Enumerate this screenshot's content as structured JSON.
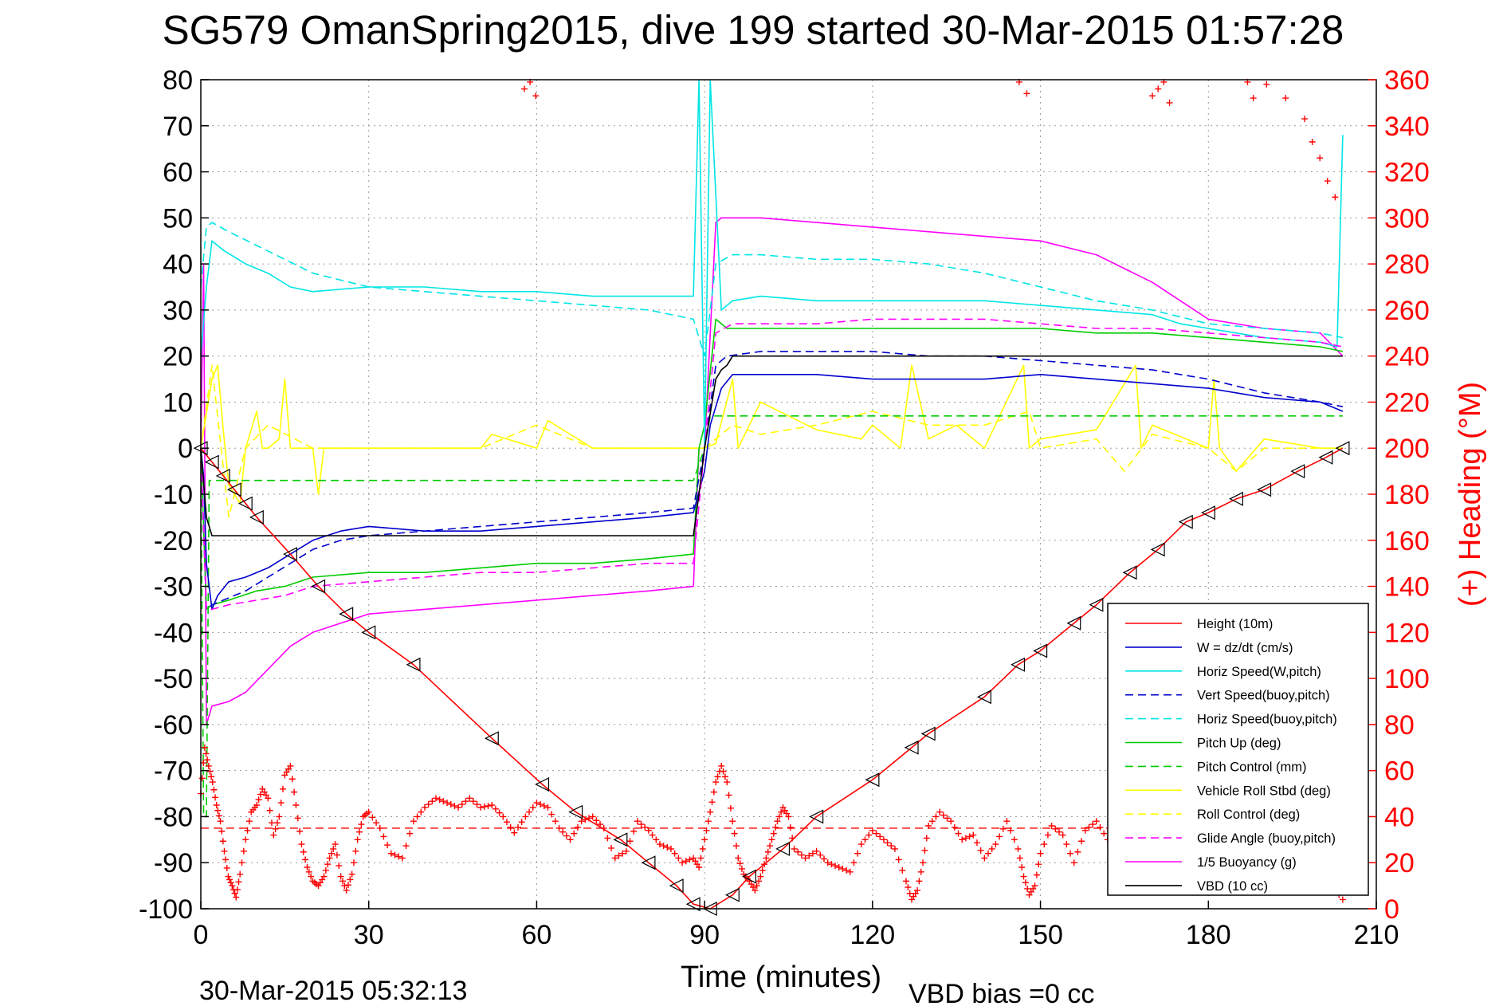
{
  "chart_data": {
    "type": "line",
    "title": "SG579 OmanSpring2015, dive 199 started 30-Mar-2015 01:57:28",
    "xlabel": "Time (minutes)",
    "ylabel": "",
    "ylabel_right": "(+) Heading (°M)",
    "xlim": [
      0,
      210
    ],
    "ylim": [
      -100,
      80
    ],
    "ylim_right": [
      0,
      360
    ],
    "x_ticks": [
      0,
      30,
      60,
      90,
      120,
      150,
      180,
      210
    ],
    "y_ticks": [
      -100,
      -90,
      -80,
      -70,
      -60,
      -50,
      -40,
      -30,
      -20,
      -10,
      0,
      10,
      20,
      30,
      40,
      50,
      60,
      70,
      80
    ],
    "y_ticks_right": [
      0,
      20,
      40,
      60,
      80,
      100,
      120,
      140,
      160,
      180,
      200,
      220,
      240,
      260,
      280,
      300,
      320,
      340,
      360
    ],
    "grid": true,
    "legend_position": "bottom-right",
    "footer_left": "30-Mar-2015 05:32:13",
    "footer_right": "VBD bias =0 cc",
    "colors": {
      "black": "#000000",
      "red": "#ff0000",
      "blue": "#0000cc",
      "cyan": "#00e5e5",
      "green": "#00cc00",
      "yellow": "#ffff00",
      "magenta": "#ff00ff"
    },
    "series": [
      {
        "name": "Height (10m)",
        "color": "#ff0000",
        "style": "solid",
        "markers": "triangles",
        "x": [
          0,
          2,
          4,
          6,
          8,
          10,
          16,
          21,
          26,
          30,
          38,
          52,
          61,
          67,
          75,
          80,
          85,
          88,
          91,
          95,
          98,
          104,
          110,
          120,
          127,
          130,
          140,
          146,
          150,
          156,
          160,
          166,
          171,
          176,
          180,
          185,
          190,
          196,
          201,
          204
        ],
        "y": [
          0,
          -3,
          -6,
          -9,
          -12,
          -15,
          -23,
          -30,
          -36,
          -40,
          -47,
          -63,
          -73,
          -79,
          -85,
          -90,
          -95,
          -99,
          -100,
          -97,
          -93,
          -87,
          -80,
          -72,
          -65,
          -62,
          -54,
          -47,
          -44,
          -38,
          -34,
          -27,
          -22,
          -16,
          -14,
          -11,
          -9,
          -5,
          -2,
          0
        ]
      },
      {
        "name": "W = dz/dt (cm/s)",
        "color": "#0000cc",
        "style": "solid",
        "x": [
          0,
          0.5,
          1,
          2,
          3,
          5,
          8,
          12,
          16,
          20,
          25,
          30,
          40,
          50,
          60,
          70,
          80,
          88,
          90,
          91,
          93,
          95,
          100,
          110,
          120,
          130,
          140,
          150,
          160,
          170,
          180,
          190,
          200,
          204
        ],
        "y": [
          0,
          -6,
          -25,
          -35,
          -32,
          -29,
          -28,
          -26,
          -23,
          -20,
          -18,
          -17,
          -18,
          -18,
          -17,
          -16,
          -15,
          -14,
          -5,
          5,
          13,
          16,
          16,
          16,
          15,
          15,
          15,
          16,
          15,
          14,
          13,
          11,
          10,
          8
        ]
      },
      {
        "name": "Horiz Speed(W,pitch)",
        "color": "#00e5e5",
        "style": "solid",
        "x": [
          0,
          1,
          2,
          4,
          8,
          12,
          16,
          20,
          30,
          40,
          50,
          60,
          70,
          80,
          88,
          89,
          90,
          91,
          93,
          95,
          100,
          110,
          120,
          130,
          140,
          150,
          160,
          170,
          175,
          180,
          185,
          190,
          200,
          203,
          204
        ],
        "y": [
          20,
          35,
          45,
          43,
          40,
          38,
          35,
          34,
          35,
          35,
          34,
          34,
          33,
          33,
          33,
          80,
          0,
          80,
          30,
          32,
          33,
          32,
          32,
          32,
          32,
          31,
          30,
          29,
          27,
          26,
          25,
          24,
          23,
          22,
          68
        ]
      },
      {
        "name": "Vert Speed(buoy,pitch)",
        "color": "#0000cc",
        "style": "dashed",
        "x": [
          0,
          1,
          2,
          4,
          8,
          12,
          16,
          20,
          25,
          30,
          40,
          50,
          60,
          70,
          80,
          88,
          90,
          92,
          94,
          100,
          110,
          120,
          130,
          140,
          150,
          160,
          170,
          180,
          190,
          200,
          204
        ],
        "y": [
          0,
          -35,
          -34,
          -33,
          -31,
          -28,
          -25,
          -22,
          -20,
          -19,
          -18,
          -17,
          -16,
          -15,
          -14,
          -13,
          0,
          18,
          20,
          21,
          21,
          21,
          20,
          20,
          19,
          18,
          17,
          15,
          12,
          10,
          9
        ]
      },
      {
        "name": "Horiz Speed(buoy,pitch)",
        "color": "#00e5e5",
        "style": "dashed",
        "x": [
          0,
          1,
          2,
          5,
          10,
          15,
          20,
          30,
          40,
          50,
          60,
          70,
          80,
          88,
          90,
          92,
          95,
          100,
          110,
          120,
          130,
          140,
          150,
          160,
          170,
          180,
          190,
          200,
          204
        ],
        "y": [
          35,
          48,
          49,
          47,
          44,
          41,
          38,
          35,
          34,
          33,
          32,
          31,
          30,
          28,
          20,
          40,
          42,
          42,
          41,
          41,
          40,
          38,
          35,
          32,
          30,
          27,
          26,
          25,
          24
        ]
      },
      {
        "name": "Pitch Up (deg)",
        "color": "#00cc00",
        "style": "solid",
        "x": [
          0,
          1,
          2,
          5,
          10,
          15,
          20,
          30,
          40,
          50,
          60,
          70,
          80,
          88,
          89,
          90,
          92,
          94,
          100,
          110,
          120,
          130,
          140,
          150,
          160,
          170,
          180,
          190,
          200,
          204
        ],
        "y": [
          0,
          -35,
          -34,
          -33,
          -31,
          -30,
          -28,
          -27,
          -27,
          -26,
          -25,
          -25,
          -24,
          -23,
          0,
          5,
          28,
          26,
          26,
          26,
          26,
          26,
          26,
          26,
          25,
          25,
          24,
          23,
          22,
          21
        ]
      },
      {
        "name": "Pitch Control (mm)",
        "color": "#00cc00",
        "style": "dashed",
        "x": [
          0,
          0.5,
          1,
          1.5,
          2,
          88,
          90,
          91,
          204
        ],
        "y": [
          0,
          -80,
          -80,
          -7,
          -7,
          -7,
          0,
          7,
          7
        ]
      },
      {
        "name": "Vehicle Roll Stbd (deg)",
        "color": "#ffff00",
        "style": "solid",
        "x": [
          0,
          2,
          3,
          4,
          5,
          7,
          8,
          10,
          11,
          12,
          14,
          15,
          16,
          20,
          21,
          22,
          30,
          40,
          50,
          52,
          60,
          62,
          70,
          80,
          88,
          90,
          92,
          95,
          96,
          98,
          100,
          110,
          118,
          120,
          125,
          127,
          130,
          135,
          140,
          147,
          148,
          150,
          160,
          167,
          168,
          170,
          180,
          181,
          182,
          185,
          190,
          200,
          204
        ],
        "y": [
          0,
          15,
          18,
          4,
          -8,
          -12,
          0,
          8,
          0,
          0,
          2,
          15,
          0,
          0,
          -10,
          0,
          0,
          0,
          0,
          3,
          0,
          6,
          0,
          0,
          0,
          0,
          1,
          15,
          0,
          5,
          10,
          4,
          2,
          5,
          0,
          18,
          2,
          5,
          0,
          18,
          0,
          2,
          4,
          18,
          0,
          5,
          0,
          15,
          0,
          -5,
          2,
          0,
          0
        ]
      },
      {
        "name": "Roll Control (deg)",
        "color": "#ffff00",
        "style": "dashed",
        "x": [
          0,
          2,
          5,
          8,
          12,
          20,
          30,
          50,
          60,
          70,
          80,
          88,
          90,
          95,
          100,
          110,
          120,
          130,
          140,
          148,
          150,
          160,
          165,
          170,
          180,
          185,
          190,
          200,
          204
        ],
        "y": [
          0,
          18,
          -15,
          0,
          5,
          0,
          0,
          0,
          5,
          0,
          0,
          0,
          0,
          5,
          3,
          5,
          8,
          5,
          5,
          8,
          0,
          2,
          -5,
          3,
          0,
          -5,
          0,
          0,
          0
        ]
      },
      {
        "name": "Glide Angle (buoy,pitch)",
        "color": "#ff00ff",
        "style": "dashed",
        "x": [
          0,
          1,
          2,
          5,
          10,
          15,
          20,
          30,
          40,
          50,
          60,
          70,
          80,
          88,
          90,
          92,
          95,
          100,
          110,
          120,
          130,
          140,
          150,
          160,
          170,
          180,
          190,
          200,
          204
        ],
        "y": [
          0,
          -35,
          -35,
          -34,
          -33,
          -32,
          -30,
          -29,
          -28,
          -27,
          -27,
          -26,
          -25,
          -25,
          0,
          25,
          27,
          27,
          27,
          28,
          28,
          28,
          27,
          26,
          26,
          25,
          24,
          23,
          22
        ]
      },
      {
        "name": "1/5 Buoyancy (g)",
        "color": "#ff00ff",
        "style": "solid",
        "x": [
          0,
          0.5,
          1,
          2,
          5,
          8,
          12,
          16,
          20,
          25,
          30,
          40,
          50,
          60,
          70,
          80,
          88,
          89,
          90,
          92,
          93,
          95,
          100,
          110,
          120,
          130,
          140,
          150,
          160,
          170,
          180,
          190,
          200,
          204
        ],
        "y": [
          0,
          40,
          -60,
          -56,
          -55,
          -53,
          -48,
          -43,
          -40,
          -38,
          -36,
          -35,
          -34,
          -33,
          -32,
          -31,
          -30,
          0,
          0,
          49,
          50,
          50,
          50,
          49,
          48,
          47,
          46,
          45,
          42,
          36,
          28,
          26,
          25,
          20
        ]
      },
      {
        "name": "VBD (10 cc)",
        "color": "#000000",
        "style": "solid",
        "x": [
          0,
          1,
          2,
          88,
          89,
          90,
          92,
          93,
          94,
          95,
          204
        ],
        "y": [
          0,
          -15,
          -19,
          -19,
          -10,
          0,
          15,
          17,
          18,
          20,
          20
        ]
      }
    ],
    "heading": {
      "name": "Heading",
      "color": "#ff0000",
      "marker": "+",
      "axis": "right",
      "x": [
        0,
        0.7,
        1.4,
        2.1,
        2.8,
        3.5,
        4.2,
        4.9,
        5.6,
        6.3,
        7,
        8,
        9,
        10,
        11,
        12,
        13,
        14,
        15,
        16,
        17,
        18,
        19,
        20,
        21,
        22,
        23,
        24,
        25,
        26,
        27,
        28,
        29,
        30,
        32,
        34,
        36,
        38,
        40,
        42,
        44,
        46,
        48,
        50,
        52,
        54,
        56,
        58,
        60,
        62,
        64,
        66,
        68,
        70,
        72,
        74,
        76,
        78,
        80,
        82,
        84,
        86,
        88,
        89,
        90,
        91,
        92,
        93,
        94,
        95,
        96,
        97,
        98,
        99,
        100,
        101,
        102,
        103,
        104,
        105,
        106,
        108,
        110,
        112,
        114,
        116,
        118,
        120,
        122,
        124,
        126,
        127,
        128,
        129,
        130,
        132,
        134,
        136,
        138,
        140,
        142,
        144,
        146,
        147,
        148,
        149,
        150,
        152,
        154,
        156,
        158,
        160,
        162,
        164,
        166,
        168,
        170,
        172,
        174,
        176,
        178,
        180,
        182,
        184,
        186,
        188,
        190,
        192,
        194,
        196,
        198,
        200,
        202,
        204
      ],
      "y": [
        50,
        70,
        62,
        55,
        45,
        38,
        25,
        14,
        10,
        5,
        15,
        30,
        42,
        45,
        52,
        48,
        32,
        40,
        58,
        62,
        45,
        28,
        18,
        12,
        10,
        14,
        22,
        28,
        14,
        8,
        15,
        30,
        40,
        42,
        35,
        24,
        22,
        38,
        44,
        48,
        46,
        44,
        48,
        44,
        45,
        40,
        33,
        40,
        46,
        44,
        35,
        30,
        38,
        40,
        35,
        22,
        25,
        38,
        34,
        28,
        26,
        20,
        22,
        18,
        30,
        42,
        55,
        62,
        55,
        38,
        22,
        15,
        12,
        8,
        14,
        22,
        30,
        38,
        44,
        40,
        26,
        22,
        25,
        20,
        18,
        16,
        28,
        34,
        30,
        26,
        12,
        4,
        8,
        20,
        36,
        42,
        38,
        30,
        32,
        22,
        28,
        38,
        26,
        14,
        6,
        10,
        24,
        36,
        32,
        20,
        34,
        38,
        30,
        22,
        34,
        40,
        38,
        32,
        28,
        22,
        30,
        18,
        24,
        20,
        30,
        26,
        28,
        22,
        24,
        30,
        26,
        22,
        10,
        4
      ],
      "top_cluster_x": [
        17,
        17.3,
        17.6,
        43,
        43.4,
        50,
        50.3,
        50.6,
        50.9,
        55,
        55.3,
        56,
        57,
        58,
        58.4,
        58.8,
        59.2,
        59.6
      ],
      "top_cluster_y": [
        356,
        359,
        353,
        359,
        354,
        353,
        356,
        359,
        350,
        359,
        352,
        358,
        352,
        343,
        333,
        326,
        316,
        309
      ]
    },
    "heading_mean": {
      "name": "Mean Heading",
      "color": "#ff0000",
      "style": "dashed",
      "y_right": 35
    }
  }
}
